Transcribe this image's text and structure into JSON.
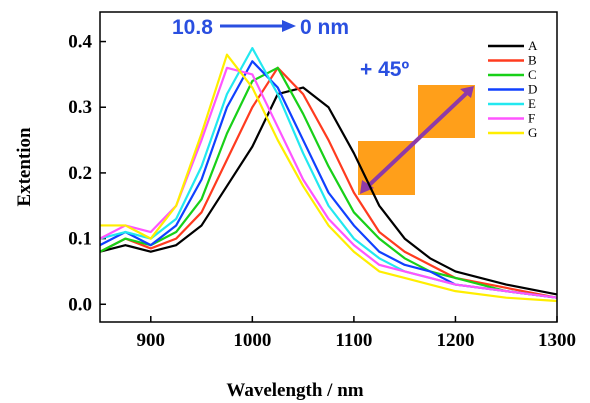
{
  "chart_data": {
    "type": "line",
    "xlabel": "Wavelength / nm",
    "ylabel": "Extention",
    "annotations": [
      "10.8",
      "0 nm",
      "+ 45º"
    ],
    "x": [
      850,
      875,
      900,
      925,
      950,
      975,
      1000,
      1025,
      1050,
      1075,
      1100,
      1125,
      1150,
      1175,
      1200,
      1250,
      1300
    ],
    "xlim": [
      850,
      1300
    ],
    "xticks": [
      900,
      1000,
      1100,
      1200,
      1300
    ],
    "ylim": [
      -0.027,
      0.445
    ],
    "yticks": [
      {
        "value": 0,
        "label": "0.0"
      },
      0.1,
      0.2,
      0.3,
      0.4
    ],
    "series": [
      {
        "name": "A",
        "color": "#000000",
        "values": [
          0.08,
          0.09,
          0.08,
          0.09,
          0.12,
          0.18,
          0.24,
          0.32,
          0.33,
          0.3,
          0.23,
          0.15,
          0.1,
          0.07,
          0.05,
          0.03,
          0.015
        ]
      },
      {
        "name": "B",
        "color": "#ff3b1f",
        "values": [
          0.08,
          0.1,
          0.085,
          0.1,
          0.14,
          0.22,
          0.3,
          0.36,
          0.32,
          0.25,
          0.17,
          0.11,
          0.08,
          0.06,
          0.04,
          0.025,
          0.01
        ]
      },
      {
        "name": "C",
        "color": "#18d018",
        "values": [
          0.08,
          0.1,
          0.09,
          0.11,
          0.16,
          0.26,
          0.34,
          0.36,
          0.29,
          0.21,
          0.14,
          0.1,
          0.07,
          0.05,
          0.04,
          0.02,
          0.01
        ]
      },
      {
        "name": "D",
        "color": "#1040ff",
        "values": [
          0.09,
          0.11,
          0.09,
          0.12,
          0.19,
          0.3,
          0.37,
          0.33,
          0.25,
          0.17,
          0.12,
          0.08,
          0.06,
          0.05,
          0.03,
          0.02,
          0.01
        ]
      },
      {
        "name": "E",
        "color": "#22e8f0",
        "values": [
          0.1,
          0.11,
          0.1,
          0.13,
          0.21,
          0.32,
          0.39,
          0.32,
          0.23,
          0.15,
          0.1,
          0.07,
          0.05,
          0.04,
          0.03,
          0.02,
          0.01
        ]
      },
      {
        "name": "F",
        "color": "#ff55ff",
        "values": [
          0.1,
          0.12,
          0.11,
          0.15,
          0.25,
          0.36,
          0.35,
          0.27,
          0.19,
          0.13,
          0.09,
          0.06,
          0.05,
          0.04,
          0.03,
          0.02,
          0.01
        ]
      },
      {
        "name": "G",
        "color": "#ffee00",
        "values": [
          0.12,
          0.12,
          0.1,
          0.15,
          0.26,
          0.38,
          0.33,
          0.25,
          0.18,
          0.12,
          0.08,
          0.05,
          0.04,
          0.03,
          0.02,
          0.01,
          0.005
        ]
      }
    ],
    "legend": "upper right"
  }
}
